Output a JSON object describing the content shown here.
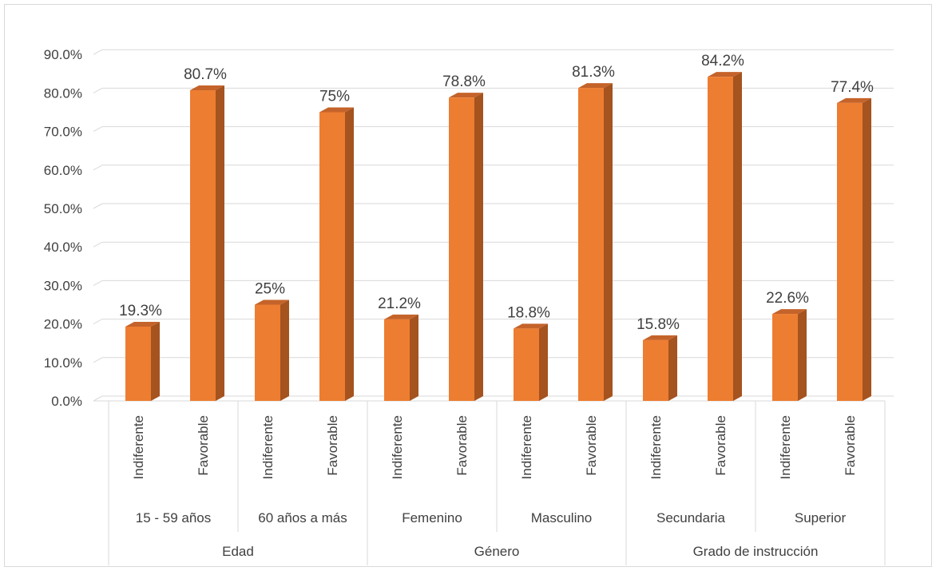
{
  "chart_data": {
    "type": "bar",
    "title": "",
    "xlabel": "",
    "ylabel": "",
    "ylim": [
      0,
      90
    ],
    "y_ticks": [
      "0.0%",
      "10.0%",
      "20.0%",
      "30.0%",
      "40.0%",
      "50.0%",
      "60.0%",
      "70.0%",
      "80.0%",
      "90.0%"
    ],
    "grid": true,
    "legend": "none",
    "bar_style": "3d-column",
    "colors": {
      "bar_front": "#ED7D31",
      "bar_side": "#A5531F",
      "bar_top": "#C4632A",
      "grid": "#D9D9D9",
      "axis_text": "#404040"
    },
    "groups": [
      {
        "label": "Edad",
        "subgroups": [
          {
            "label": "15 - 59 años",
            "bars": [
              {
                "category": "Indiferente",
                "value": 19.3,
                "label": "19.3%"
              },
              {
                "category": "Favorable",
                "value": 80.7,
                "label": "80.7%"
              }
            ]
          },
          {
            "label": "60 años a más",
            "bars": [
              {
                "category": "Indiferente",
                "value": 25,
                "label": "25%"
              },
              {
                "category": "Favorable",
                "value": 75,
                "label": "75%"
              }
            ]
          }
        ]
      },
      {
        "label": "Género",
        "subgroups": [
          {
            "label": "Femenino",
            "bars": [
              {
                "category": "Indiferente",
                "value": 21.2,
                "label": "21.2%"
              },
              {
                "category": "Favorable",
                "value": 78.8,
                "label": "78.8%"
              }
            ]
          },
          {
            "label": "Masculino",
            "bars": [
              {
                "category": "Indiferente",
                "value": 18.8,
                "label": "18.8%"
              },
              {
                "category": "Favorable",
                "value": 81.3,
                "label": "81.3%"
              }
            ]
          }
        ]
      },
      {
        "label": "Grado de instrucción",
        "subgroups": [
          {
            "label": "Secundaria",
            "bars": [
              {
                "category": "Indiferente",
                "value": 15.8,
                "label": "15.8%"
              },
              {
                "category": "Favorable",
                "value": 84.2,
                "label": "84.2%"
              }
            ]
          },
          {
            "label": "Superior",
            "bars": [
              {
                "category": "Indiferente",
                "value": 22.6,
                "label": "22.6%"
              },
              {
                "category": "Favorable",
                "value": 77.4,
                "label": "77.4%"
              }
            ]
          }
        ]
      }
    ]
  }
}
